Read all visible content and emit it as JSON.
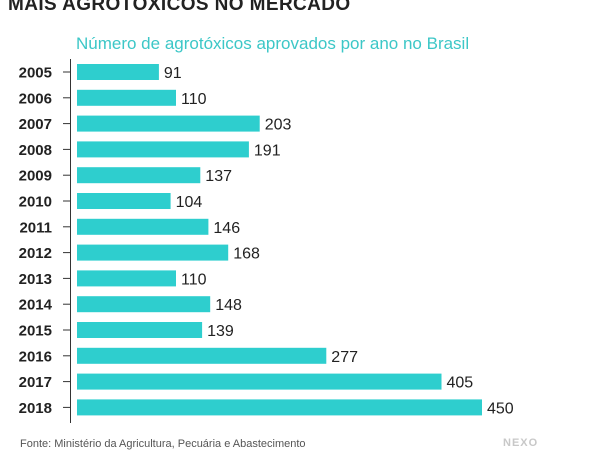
{
  "header": {
    "title": "MAIS AGROTÓXICOS NO MERCADO",
    "subtitle": "Número de agrotóxicos aprovados por ano no Brasil"
  },
  "footer": {
    "source": "Fonte: Ministério da Agricultura, Pecuária e Abastecimento",
    "logo_text": "NEXO"
  },
  "colors": {
    "bar": "#2ecece",
    "axis": "#333333",
    "text": "#222222"
  },
  "chart_data": {
    "type": "bar",
    "orientation": "horizontal",
    "title": "MAIS AGROTÓXICOS NO MERCADO",
    "subtitle": "Número de agrotóxicos aprovados por ano no Brasil",
    "xlabel": "",
    "ylabel": "",
    "xlim": [
      0,
      450
    ],
    "grid": false,
    "categories": [
      "2005",
      "2006",
      "2007",
      "2008",
      "2009",
      "2010",
      "2011",
      "2012",
      "2013",
      "2014",
      "2015",
      "2016",
      "2017",
      "2018"
    ],
    "values": [
      91,
      110,
      203,
      191,
      137,
      104,
      146,
      168,
      110,
      148,
      139,
      277,
      405,
      450
    ]
  }
}
